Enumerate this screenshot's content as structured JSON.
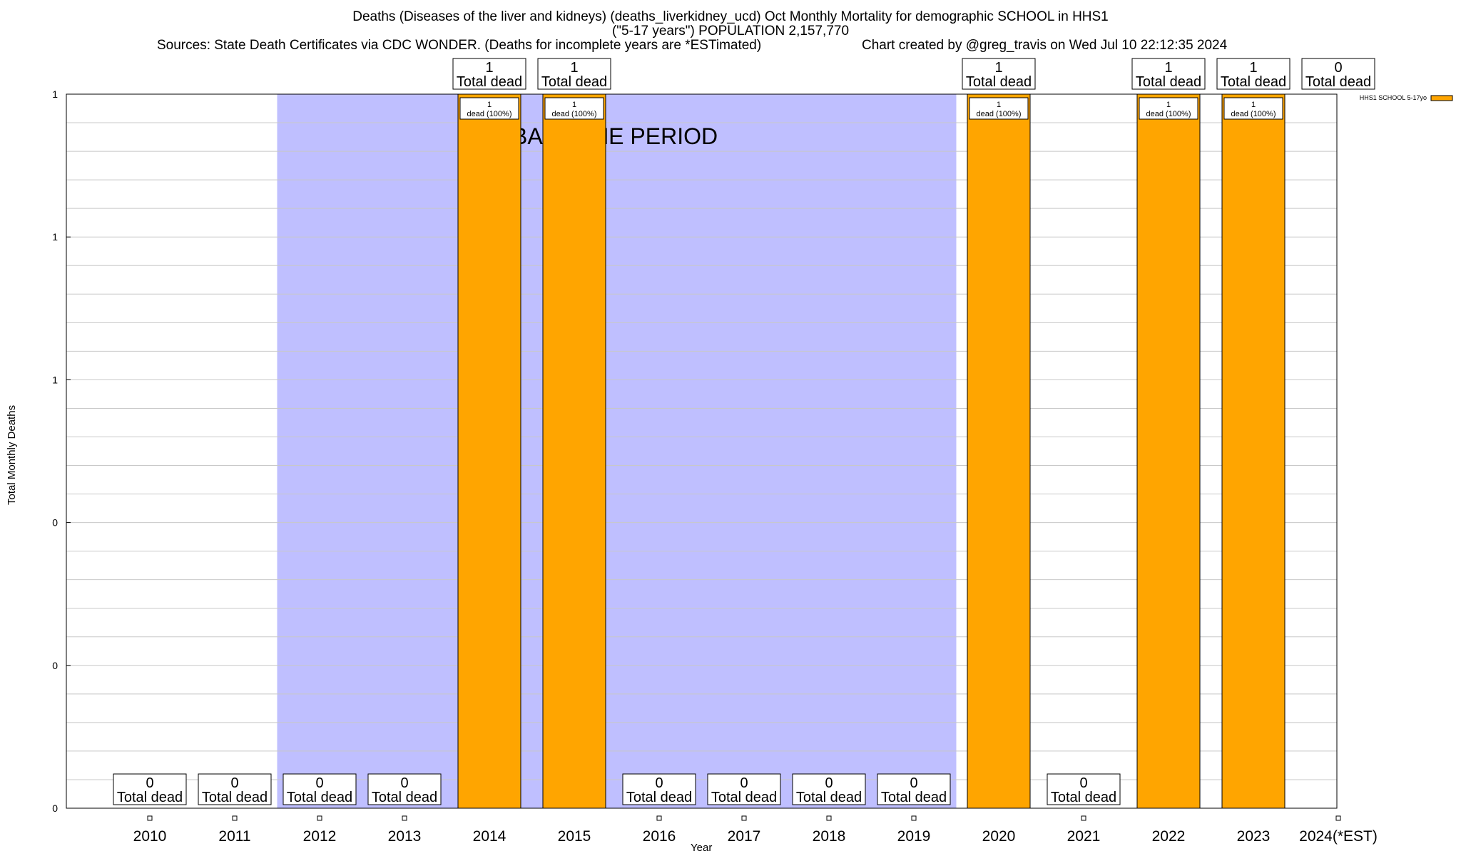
{
  "title": {
    "line1": "Deaths (Diseases of the liver and kidneys) (deaths_liverkidney_ucd) Oct Monthly Mortality for demographic SCHOOL in HHS1",
    "line2": "(\"5-17 years\") POPULATION 2,157,770",
    "sources": "Sources: State Death Certificates via CDC WONDER. (Deaths for incomplete years are *ESTimated)",
    "credit": "Chart created by @greg_travis on Wed Jul 10 22:12:35 2024"
  },
  "colors": {
    "bar": "#FFA500",
    "baseline": "#BFBFFF",
    "grid": "#C8C8C8"
  },
  "chart_data": {
    "type": "bar",
    "xlabel": "Year",
    "ylabel": "Total Monthly Deaths",
    "ylim": [
      0,
      1
    ],
    "y_tick_labels": [
      "0",
      "0",
      "0",
      "1",
      "1",
      "1"
    ],
    "grid": true,
    "legend_position": "top-right",
    "baseline_label": "BASELINE PERIOD",
    "baseline_range": [
      "2012",
      "2019"
    ],
    "categories": [
      "2010",
      "2011",
      "2012",
      "2013",
      "2014",
      "2015",
      "2016",
      "2017",
      "2018",
      "2019",
      "2020",
      "2021",
      "2022",
      "2023",
      "2024(*EST)"
    ],
    "series": [
      {
        "name": "HHS1 SCHOOL 5-17yo",
        "values": [
          0,
          0,
          0,
          0,
          1,
          1,
          0,
          0,
          0,
          0,
          1,
          0,
          1,
          1,
          0
        ]
      }
    ],
    "top_labels": [
      "",
      "",
      "",
      "",
      "1",
      "1",
      "",
      "",
      "",
      "",
      "1",
      "",
      "1",
      "1",
      "0"
    ],
    "bottom_labels": [
      "0",
      "0",
      "0",
      "0",
      "",
      "",
      "0",
      "0",
      "0",
      "0",
      "",
      "0",
      "",
      "",
      ""
    ],
    "total_dead_text": "Total dead",
    "bar_inner_labels": [
      "",
      "",
      "",
      "",
      "1|dead (100%)",
      "1|dead (100%)",
      "",
      "",
      "",
      "",
      "1|dead (100%)",
      "",
      "1|dead (100%)",
      "1|dead (100%)",
      ""
    ]
  }
}
